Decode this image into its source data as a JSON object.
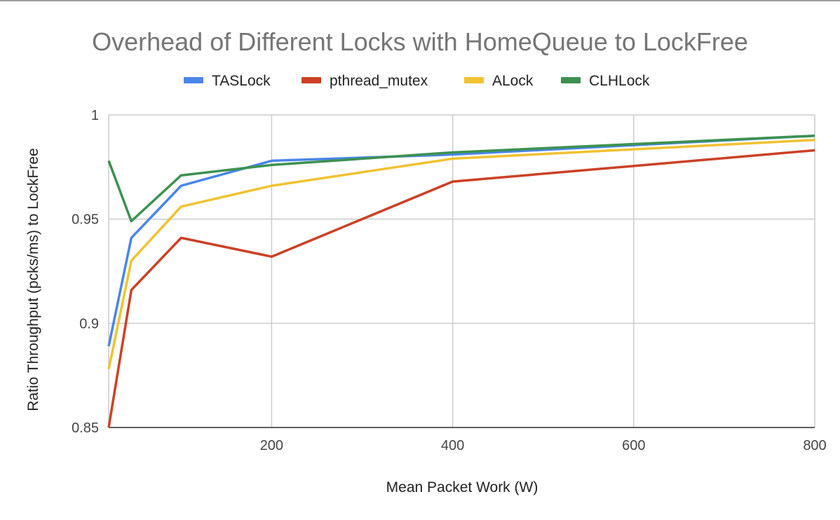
{
  "chart_data": {
    "type": "line",
    "title": "Overhead of Different Locks with HomeQueue to LockFree",
    "xlabel": "Mean Packet Work (W)",
    "ylabel": "Ratio Throughput (pcks/ms) to LockFree",
    "xlim": [
      20,
      800
    ],
    "ylim": [
      0.85,
      1.0
    ],
    "xticks": [
      200,
      400,
      600,
      800
    ],
    "yticks": [
      0.85,
      0.9,
      0.95,
      1
    ],
    "ytick_labels": [
      "0.85",
      "0.9",
      "0.95",
      "1"
    ],
    "grid": true,
    "legend_position": "top",
    "x": [
      20,
      45,
      100,
      200,
      400,
      800
    ],
    "series": [
      {
        "name": "TASLock",
        "color": "#4A86E8",
        "values": [
          0.889,
          0.941,
          0.966,
          0.978,
          0.981,
          0.99
        ]
      },
      {
        "name": "pthread_mutex",
        "color": "#CC4125",
        "values": [
          0.85,
          0.916,
          0.941,
          0.932,
          0.968,
          0.983
        ]
      },
      {
        "name": "ALock",
        "color": "#F1C232",
        "values": [
          0.878,
          0.93,
          0.956,
          0.966,
          0.979,
          0.988
        ]
      },
      {
        "name": "CLHLock",
        "color": "#3D9150",
        "values": [
          0.978,
          0.949,
          0.971,
          0.976,
          0.982,
          0.99
        ]
      }
    ]
  }
}
